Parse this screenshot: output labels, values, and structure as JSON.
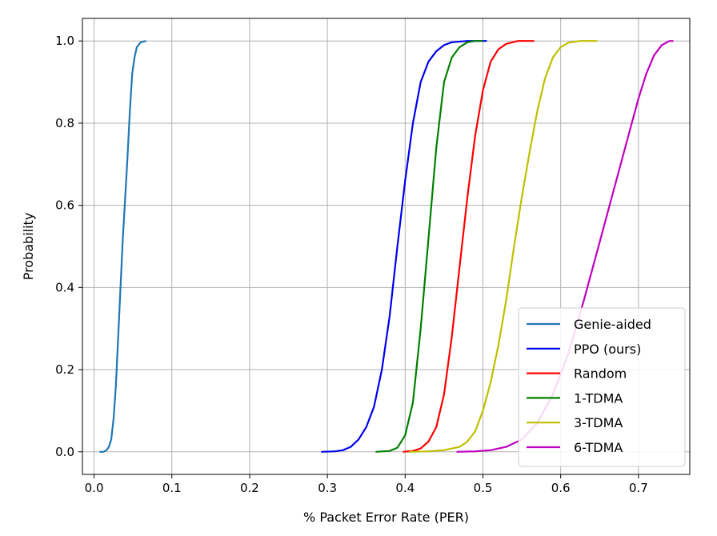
{
  "chart_data": {
    "type": "line",
    "title": "",
    "xlabel": "% Packet Error Rate (PER)",
    "ylabel": "Probability",
    "xlim": [
      -0.015,
      0.766
    ],
    "ylim": [
      -0.055,
      1.055
    ],
    "xticks": [
      0.0,
      0.1,
      0.2,
      0.3,
      0.4,
      0.5,
      0.6,
      0.7
    ],
    "xtick_labels": [
      "0.0",
      "0.1",
      "0.2",
      "0.3",
      "0.4",
      "0.5",
      "0.6",
      "0.7"
    ],
    "yticks": [
      0.0,
      0.2,
      0.4,
      0.6,
      0.8,
      1.0
    ],
    "ytick_labels": [
      "0.0",
      "0.2",
      "0.4",
      "0.6",
      "0.8",
      "1.0"
    ],
    "grid": true,
    "legend_position": "lower-right",
    "series": [
      {
        "name": "Genie-aided",
        "color": "#1f77b4",
        "points": [
          [
            0.007,
            0.0
          ],
          [
            0.012,
            0.0
          ],
          [
            0.016,
            0.004
          ],
          [
            0.019,
            0.012
          ],
          [
            0.022,
            0.03
          ],
          [
            0.025,
            0.08
          ],
          [
            0.028,
            0.16
          ],
          [
            0.031,
            0.28
          ],
          [
            0.034,
            0.4
          ],
          [
            0.037,
            0.52
          ],
          [
            0.04,
            0.62
          ],
          [
            0.043,
            0.72
          ],
          [
            0.046,
            0.83
          ],
          [
            0.049,
            0.92
          ],
          [
            0.052,
            0.96
          ],
          [
            0.055,
            0.985
          ],
          [
            0.06,
            0.997
          ],
          [
            0.067,
            1.0
          ]
        ]
      },
      {
        "name": "PPO (ours)",
        "color": "#0000ee",
        "points": [
          [
            0.292,
            0.0
          ],
          [
            0.31,
            0.001
          ],
          [
            0.32,
            0.004
          ],
          [
            0.33,
            0.012
          ],
          [
            0.34,
            0.03
          ],
          [
            0.35,
            0.06
          ],
          [
            0.36,
            0.11
          ],
          [
            0.37,
            0.2
          ],
          [
            0.38,
            0.33
          ],
          [
            0.39,
            0.5
          ],
          [
            0.4,
            0.66
          ],
          [
            0.41,
            0.8
          ],
          [
            0.42,
            0.9
          ],
          [
            0.43,
            0.95
          ],
          [
            0.44,
            0.975
          ],
          [
            0.45,
            0.99
          ],
          [
            0.46,
            0.997
          ],
          [
            0.48,
            1.0
          ],
          [
            0.505,
            1.0
          ]
        ]
      },
      {
        "name": "Random",
        "color": "#ff0000",
        "points": [
          [
            0.397,
            0.0
          ],
          [
            0.41,
            0.002
          ],
          [
            0.42,
            0.008
          ],
          [
            0.43,
            0.025
          ],
          [
            0.44,
            0.06
          ],
          [
            0.45,
            0.14
          ],
          [
            0.46,
            0.28
          ],
          [
            0.47,
            0.45
          ],
          [
            0.48,
            0.62
          ],
          [
            0.49,
            0.77
          ],
          [
            0.5,
            0.88
          ],
          [
            0.51,
            0.95
          ],
          [
            0.52,
            0.98
          ],
          [
            0.53,
            0.993
          ],
          [
            0.545,
            1.0
          ],
          [
            0.566,
            1.0
          ]
        ]
      },
      {
        "name": "1-TDMA",
        "color": "#008000",
        "points": [
          [
            0.362,
            0.0
          ],
          [
            0.38,
            0.002
          ],
          [
            0.39,
            0.01
          ],
          [
            0.4,
            0.04
          ],
          [
            0.41,
            0.12
          ],
          [
            0.42,
            0.3
          ],
          [
            0.43,
            0.52
          ],
          [
            0.44,
            0.74
          ],
          [
            0.45,
            0.9
          ],
          [
            0.46,
            0.96
          ],
          [
            0.47,
            0.985
          ],
          [
            0.48,
            0.997
          ],
          [
            0.49,
            1.0
          ],
          [
            0.5,
            1.0
          ]
        ]
      },
      {
        "name": "3-TDMA",
        "color": "#bfbf00",
        "points": [
          [
            0.405,
            0.0
          ],
          [
            0.43,
            0.001
          ],
          [
            0.45,
            0.004
          ],
          [
            0.47,
            0.012
          ],
          [
            0.48,
            0.025
          ],
          [
            0.49,
            0.05
          ],
          [
            0.5,
            0.1
          ],
          [
            0.51,
            0.17
          ],
          [
            0.52,
            0.26
          ],
          [
            0.53,
            0.37
          ],
          [
            0.54,
            0.5
          ],
          [
            0.55,
            0.62
          ],
          [
            0.56,
            0.73
          ],
          [
            0.57,
            0.83
          ],
          [
            0.58,
            0.91
          ],
          [
            0.59,
            0.96
          ],
          [
            0.6,
            0.985
          ],
          [
            0.61,
            0.996
          ],
          [
            0.625,
            1.0
          ],
          [
            0.647,
            1.0
          ]
        ]
      },
      {
        "name": "6-TDMA",
        "color": "#bf00bf",
        "points": [
          [
            0.466,
            0.0
          ],
          [
            0.49,
            0.001
          ],
          [
            0.51,
            0.004
          ],
          [
            0.53,
            0.012
          ],
          [
            0.55,
            0.03
          ],
          [
            0.57,
            0.07
          ],
          [
            0.59,
            0.14
          ],
          [
            0.61,
            0.24
          ],
          [
            0.63,
            0.37
          ],
          [
            0.65,
            0.51
          ],
          [
            0.67,
            0.65
          ],
          [
            0.69,
            0.79
          ],
          [
            0.7,
            0.86
          ],
          [
            0.71,
            0.92
          ],
          [
            0.72,
            0.965
          ],
          [
            0.73,
            0.99
          ],
          [
            0.74,
            1.0
          ],
          [
            0.745,
            1.0
          ]
        ]
      }
    ]
  }
}
